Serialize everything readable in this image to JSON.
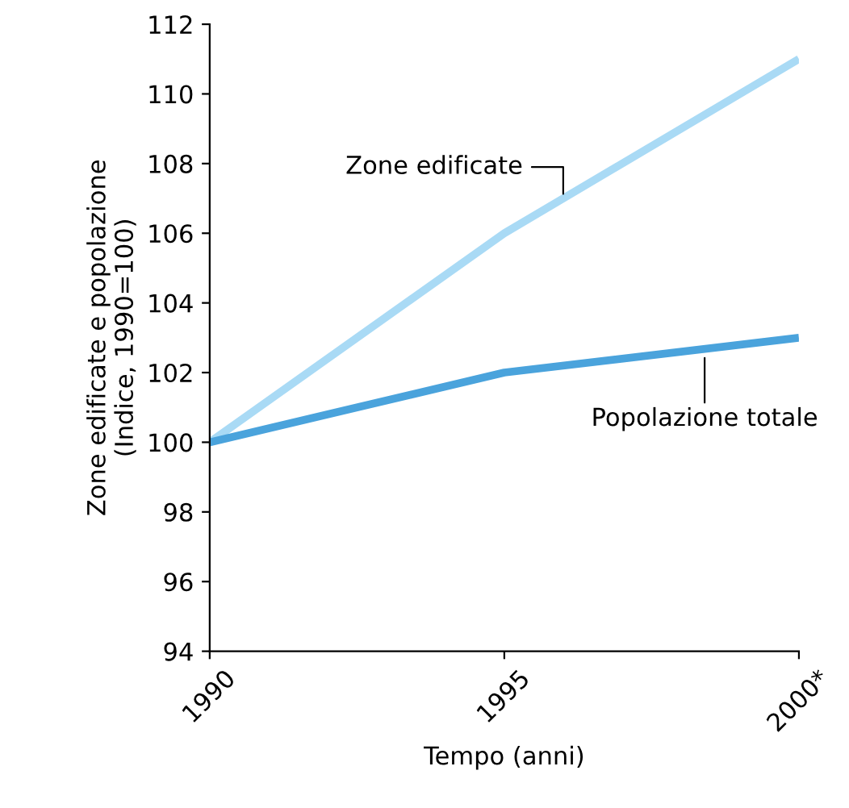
{
  "chart_data": {
    "type": "line",
    "xlabel": "Tempo (anni)",
    "ylabel": "Zone edificate e popolazione\n(Indice, 1990=100)",
    "categories": [
      "1990",
      "1995",
      "2000*"
    ],
    "series": [
      {
        "name": "Zone edificate",
        "color": "#a9daf5",
        "values": [
          100,
          106,
          111
        ]
      },
      {
        "name": "Popolazione totale",
        "color": "#4aa3dc",
        "values": [
          100,
          102,
          103
        ]
      }
    ],
    "ylim": [
      94,
      112
    ],
    "yticks": [
      94,
      96,
      98,
      100,
      102,
      104,
      106,
      108,
      110,
      112
    ],
    "grid": false,
    "legend": false,
    "marker": "none",
    "line_style": "solid"
  }
}
